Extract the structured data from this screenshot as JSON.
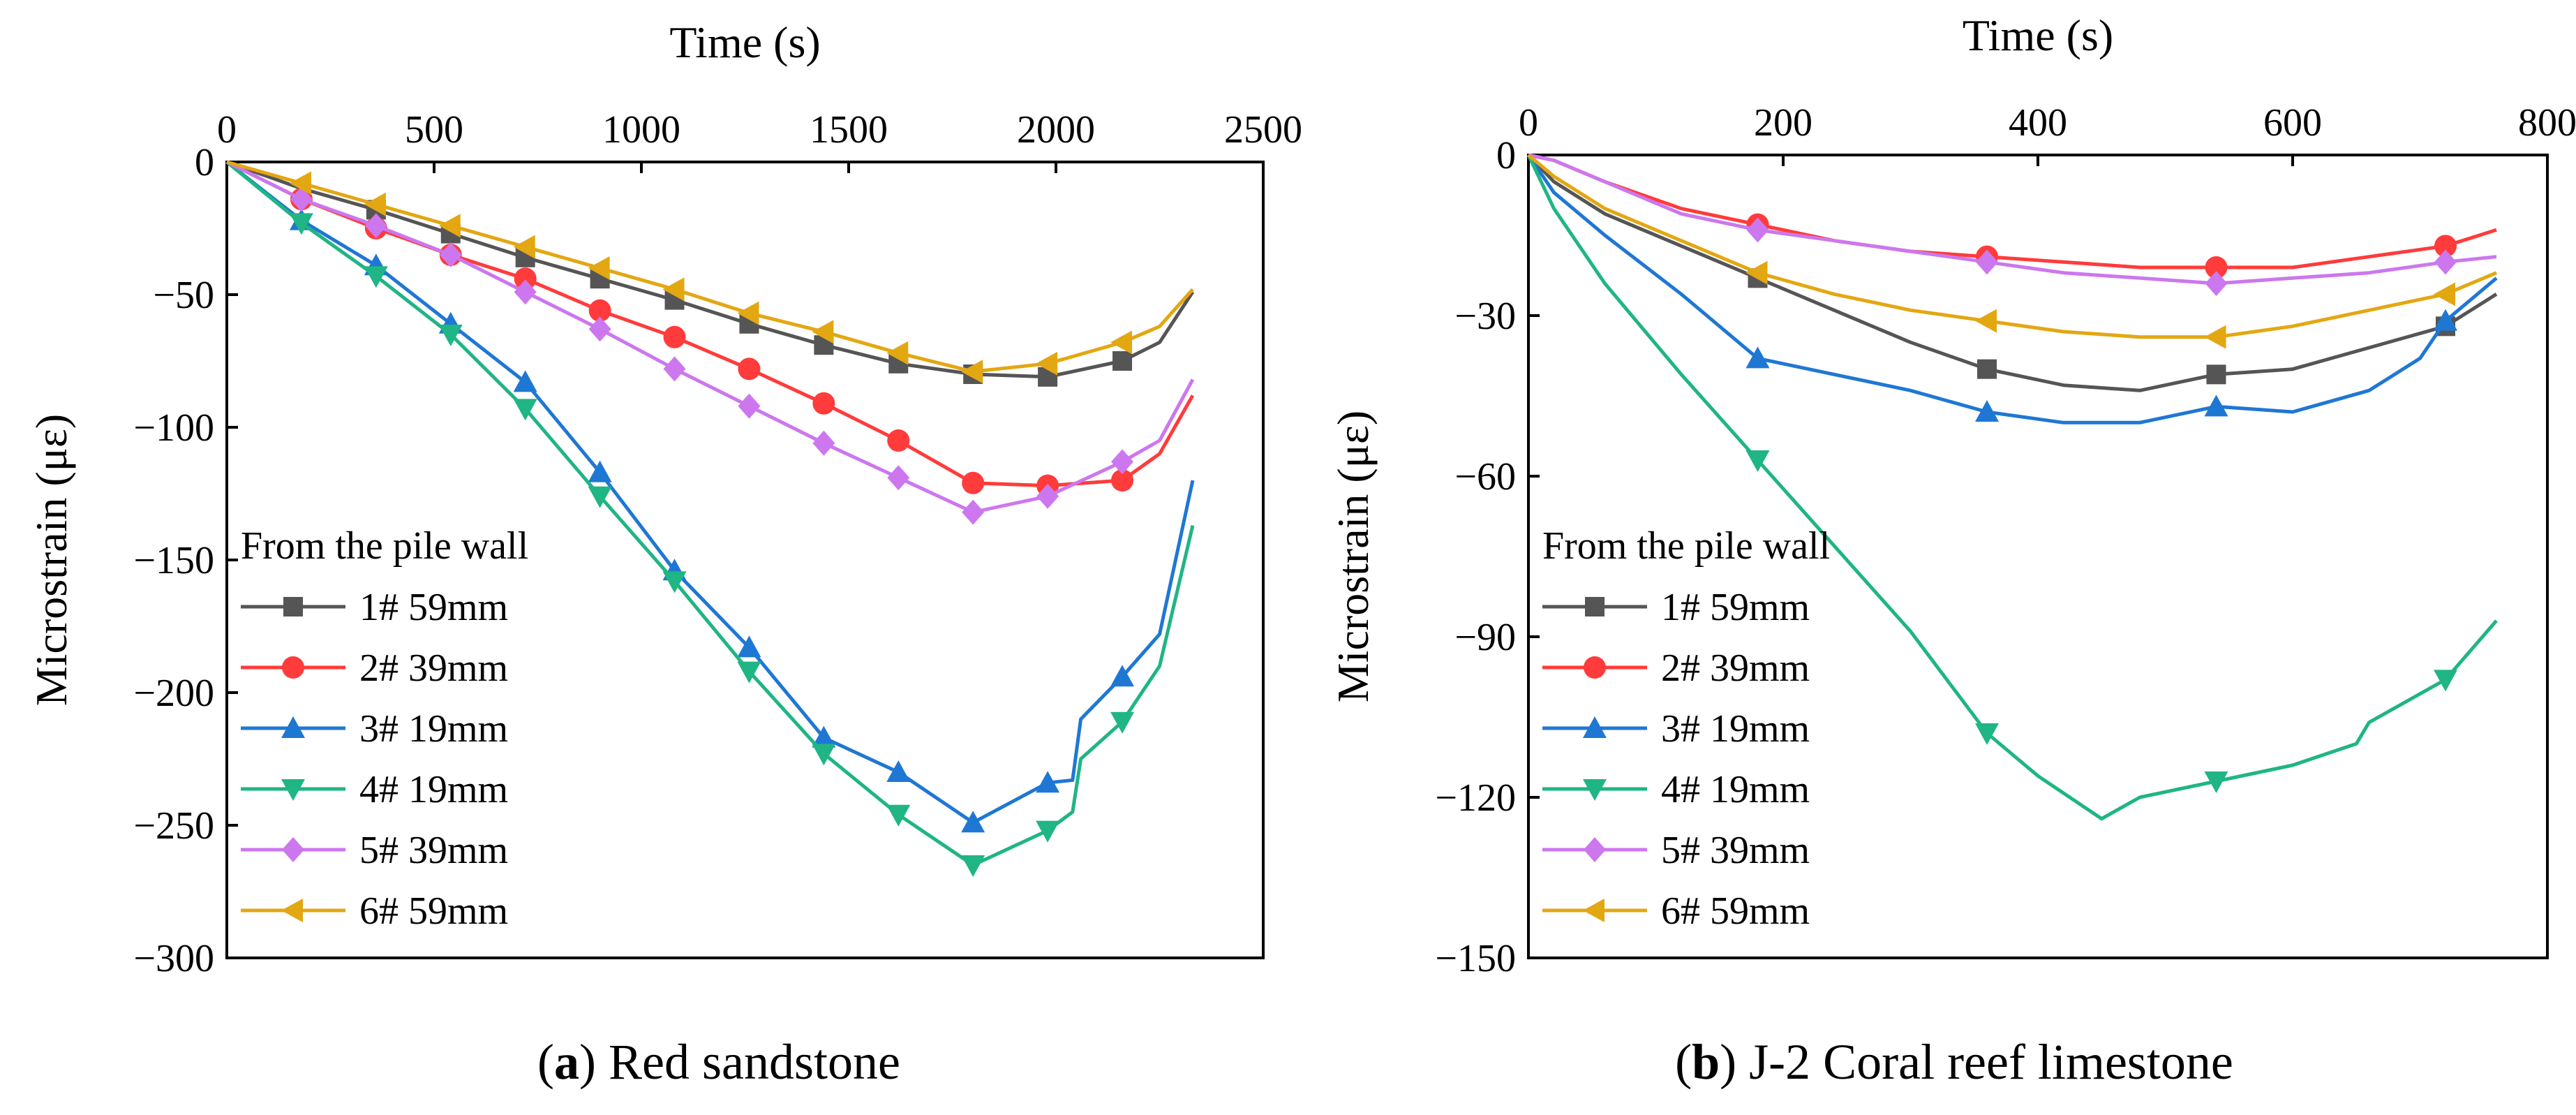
{
  "chart_data": [
    {
      "type": "line",
      "caption_letter": "a",
      "caption_text": "Red sandstone",
      "xlabel": "Time (s)",
      "ylabel": "Microstrain (με)",
      "xlim": [
        0,
        2500
      ],
      "ylim": [
        -300,
        0
      ],
      "x_ticks": [
        0,
        500,
        1000,
        1500,
        2000,
        2500
      ],
      "x_tick_labels": [
        "0",
        "500",
        "1000",
        "1500",
        "2000",
        "2500"
      ],
      "y_ticks": [
        0,
        -50,
        -100,
        -150,
        -200,
        -250,
        -300
      ],
      "y_tick_labels": [
        "0",
        "−50",
        "−100",
        "−150",
        "−200",
        "−250",
        "−300"
      ],
      "x_axis_position": "top",
      "legend_title": "From the pile wall",
      "legend_position": "lower-left",
      "series": [
        {
          "name": "1# 59mm",
          "color": "#555555",
          "marker": "square",
          "x": [
            0,
            180,
            360,
            540,
            720,
            900,
            1080,
            1260,
            1440,
            1620,
            1800,
            1980,
            2160,
            2250,
            2330
          ],
          "y": [
            0,
            -10,
            -18,
            -27,
            -36,
            -44,
            -52,
            -61,
            -69,
            -76,
            -80,
            -81,
            -75,
            -68,
            -49
          ],
          "markers_x": [
            360,
            540,
            720,
            900,
            1080,
            1260,
            1440,
            1620,
            1800,
            1980,
            2160
          ]
        },
        {
          "name": "2# 39mm",
          "color": "#ff3b3b",
          "marker": "circle",
          "x": [
            0,
            180,
            360,
            540,
            720,
            900,
            1080,
            1260,
            1440,
            1620,
            1800,
            1980,
            2160,
            2250,
            2330
          ],
          "y": [
            0,
            -14,
            -25,
            -35,
            -44,
            -56,
            -66,
            -78,
            -91,
            -105,
            -121,
            -122,
            -120,
            -110,
            -88
          ],
          "markers_x": [
            180,
            360,
            540,
            720,
            900,
            1080,
            1260,
            1440,
            1620,
            1800,
            1980,
            2160
          ]
        },
        {
          "name": "3# 19mm",
          "color": "#1f77d4",
          "marker": "triangle-up",
          "x": [
            0,
            180,
            360,
            540,
            720,
            900,
            1080,
            1260,
            1440,
            1620,
            1800,
            1980,
            2040,
            2060,
            2160,
            2250,
            2330
          ],
          "y": [
            0,
            -22,
            -39,
            -61,
            -83,
            -117,
            -154,
            -183,
            -217,
            -230,
            -249,
            -234,
            -233,
            -210,
            -194,
            -178,
            -120
          ],
          "markers_x": [
            180,
            360,
            540,
            720,
            900,
            1080,
            1260,
            1440,
            1620,
            1800,
            1980,
            2160
          ]
        },
        {
          "name": "4# 19mm",
          "color": "#1fb584",
          "marker": "triangle-down",
          "x": [
            0,
            180,
            360,
            540,
            720,
            900,
            1080,
            1260,
            1440,
            1620,
            1800,
            1980,
            2040,
            2060,
            2160,
            2250,
            2330
          ],
          "y": [
            0,
            -23,
            -43,
            -65,
            -93,
            -126,
            -158,
            -192,
            -223,
            -246,
            -265,
            -252,
            -245,
            -225,
            -211,
            -190,
            -137
          ],
          "markers_x": [
            180,
            360,
            540,
            720,
            900,
            1080,
            1260,
            1440,
            1620,
            1800,
            1980,
            2160
          ]
        },
        {
          "name": "5# 39mm",
          "color": "#cc77ee",
          "marker": "diamond",
          "x": [
            0,
            180,
            360,
            540,
            720,
            900,
            1080,
            1260,
            1440,
            1620,
            1800,
            1980,
            2160,
            2250,
            2330
          ],
          "y": [
            0,
            -14,
            -24,
            -35,
            -49,
            -63,
            -78,
            -92,
            -106,
            -119,
            -132,
            -126,
            -113,
            -105,
            -82
          ],
          "markers_x": [
            180,
            360,
            540,
            720,
            900,
            1080,
            1260,
            1440,
            1620,
            1800,
            1980,
            2160
          ]
        },
        {
          "name": "6# 59mm",
          "color": "#e3a712",
          "marker": "triangle-left",
          "x": [
            0,
            180,
            360,
            540,
            720,
            900,
            1080,
            1260,
            1440,
            1620,
            1800,
            1980,
            2160,
            2250,
            2330
          ],
          "y": [
            0,
            -8,
            -16,
            -24,
            -32,
            -40,
            -48,
            -57,
            -64,
            -72,
            -79,
            -76,
            -68,
            -62,
            -48
          ],
          "markers_x": [
            180,
            360,
            540,
            720,
            900,
            1080,
            1260,
            1440,
            1620,
            1800,
            1980,
            2160
          ]
        }
      ]
    },
    {
      "type": "line",
      "caption_letter": "b",
      "caption_text": "J-2 Coral reef limestone",
      "xlabel": "Time (s)",
      "ylabel": "Microstrain (με)",
      "xlim": [
        0,
        800
      ],
      "ylim": [
        -150,
        0
      ],
      "x_ticks": [
        0,
        200,
        400,
        600,
        800
      ],
      "x_tick_labels": [
        "0",
        "200",
        "400",
        "600",
        "800"
      ],
      "y_ticks": [
        0,
        -30,
        -60,
        -90,
        -120,
        -150
      ],
      "y_tick_labels": [
        "0",
        "−30",
        "−60",
        "−90",
        "−120",
        "−150"
      ],
      "x_axis_position": "top",
      "legend_title": "From the pile wall",
      "legend_position": "lower-left",
      "series": [
        {
          "name": "1# 59mm",
          "color": "#555555",
          "marker": "square",
          "x": [
            0,
            20,
            60,
            120,
            180,
            240,
            300,
            360,
            420,
            480,
            540,
            600,
            660,
            720,
            760
          ],
          "y": [
            0,
            -5,
            -11,
            -17,
            -23,
            -29,
            -35,
            -40,
            -43,
            -44,
            -41,
            -40,
            -36,
            -32,
            -26
          ],
          "markers_x": [
            180,
            360,
            540,
            720
          ]
        },
        {
          "name": "2# 39mm",
          "color": "#ff3b3b",
          "marker": "circle",
          "x": [
            0,
            20,
            60,
            120,
            180,
            240,
            300,
            360,
            420,
            480,
            540,
            600,
            660,
            720,
            760
          ],
          "y": [
            0,
            -1,
            -5,
            -10,
            -13,
            -16,
            -18,
            -19,
            -20,
            -21,
            -21,
            -21,
            -19,
            -17,
            -14
          ],
          "markers_x": [
            180,
            360,
            540,
            720
          ]
        },
        {
          "name": "3# 19mm",
          "color": "#1f77d4",
          "marker": "triangle-up",
          "x": [
            0,
            20,
            60,
            120,
            180,
            240,
            300,
            360,
            420,
            480,
            540,
            600,
            660,
            700,
            720,
            760
          ],
          "y": [
            0,
            -7,
            -15,
            -26,
            -38,
            -41,
            -44,
            -48,
            -50,
            -50,
            -47,
            -48,
            -44,
            -38,
            -31,
            -23
          ],
          "markers_x": [
            180,
            360,
            540,
            720
          ]
        },
        {
          "name": "4# 19mm",
          "color": "#1fb584",
          "marker": "triangle-down",
          "x": [
            0,
            20,
            60,
            120,
            180,
            240,
            300,
            360,
            400,
            450,
            480,
            540,
            600,
            650,
            660,
            720,
            760
          ],
          "y": [
            0,
            -10,
            -24,
            -41,
            -57,
            -73,
            -89,
            -108,
            -116,
            -124,
            -120,
            -117,
            -114,
            -110,
            -106,
            -98,
            -87
          ],
          "markers_x": [
            180,
            360,
            540,
            720
          ]
        },
        {
          "name": "5# 39mm",
          "color": "#cc77ee",
          "marker": "diamond",
          "x": [
            0,
            20,
            60,
            120,
            180,
            240,
            300,
            360,
            420,
            480,
            540,
            600,
            660,
            720,
            760
          ],
          "y": [
            0,
            -1,
            -5,
            -11,
            -14,
            -16,
            -18,
            -20,
            -22,
            -23,
            -24,
            -23,
            -22,
            -20,
            -19
          ],
          "markers_x": [
            180,
            360,
            540,
            720
          ]
        },
        {
          "name": "6# 59mm",
          "color": "#e3a712",
          "marker": "triangle-left",
          "x": [
            0,
            20,
            60,
            120,
            180,
            240,
            300,
            360,
            420,
            480,
            540,
            600,
            660,
            720,
            760
          ],
          "y": [
            0,
            -4,
            -10,
            -16,
            -22,
            -26,
            -29,
            -31,
            -33,
            -34,
            -34,
            -32,
            -29,
            -26,
            -22
          ],
          "markers_x": [
            180,
            360,
            540,
            720
          ]
        }
      ]
    }
  ]
}
